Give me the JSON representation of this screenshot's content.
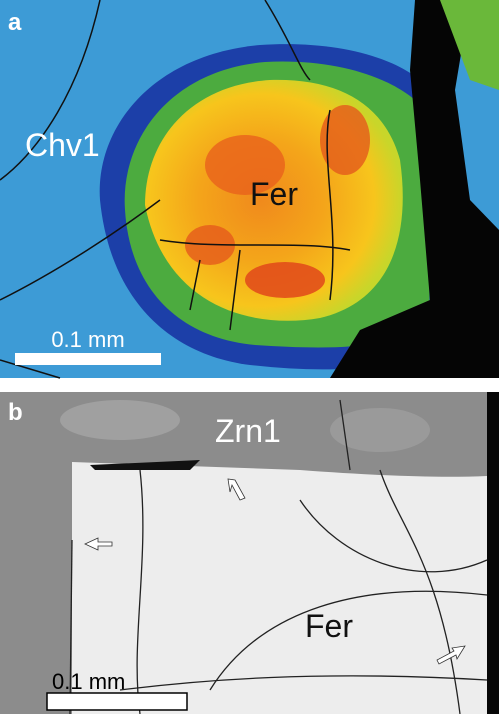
{
  "panels": [
    {
      "label": "a",
      "annotations": [
        "Chv1",
        "Fer"
      ],
      "scale_bar": "0.1 mm"
    },
    {
      "label": "b",
      "annotations": [
        "Zrn1",
        "Fer"
      ],
      "scale_bar": "0.1 mm"
    }
  ]
}
